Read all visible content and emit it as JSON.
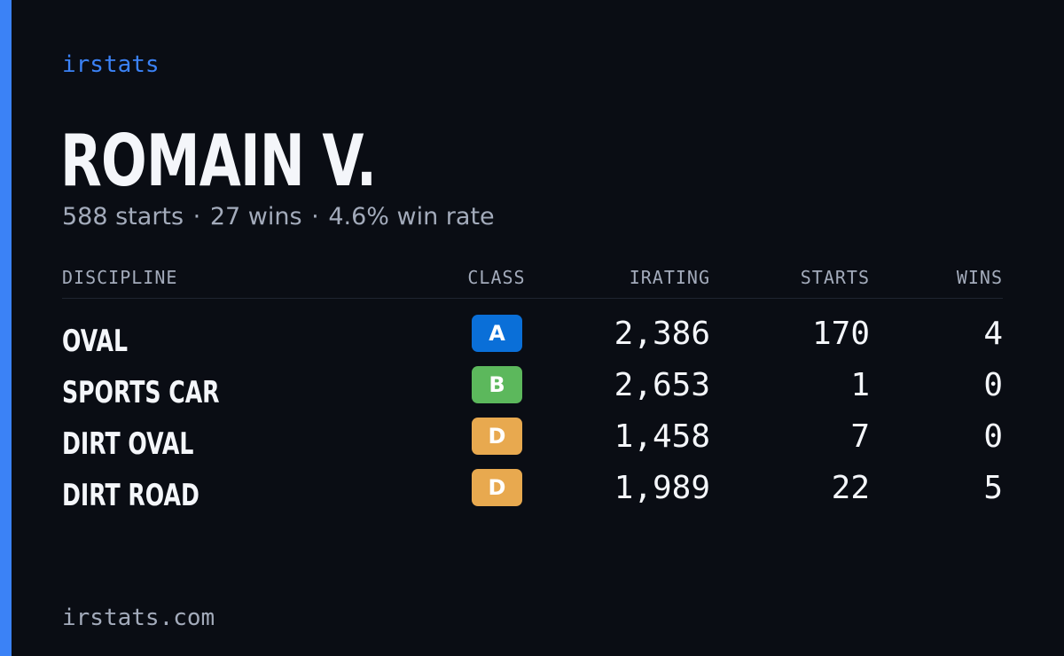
{
  "brand": "irstats",
  "driver": {
    "name": "ROMAIN V.",
    "starts_text": "588 starts",
    "wins_text": "27 wins",
    "win_rate_text": "4.6% win rate",
    "separator": "·"
  },
  "table": {
    "headers": {
      "discipline": "DISCIPLINE",
      "class": "CLASS",
      "irating": "IRATING",
      "starts": "STARTS",
      "wins": "WINS"
    },
    "rows": [
      {
        "discipline": "OVAL",
        "class": "A",
        "class_color": "#0a6fd8",
        "irating": "2,386",
        "starts": "170",
        "wins": "4"
      },
      {
        "discipline": "SPORTS CAR",
        "class": "B",
        "class_color": "#5cb85c",
        "irating": "2,653",
        "starts": "1",
        "wins": "0"
      },
      {
        "discipline": "DIRT OVAL",
        "class": "D",
        "class_color": "#e8a94f",
        "irating": "1,458",
        "starts": "7",
        "wins": "0"
      },
      {
        "discipline": "DIRT ROAD",
        "class": "D",
        "class_color": "#e8a94f",
        "irating": "1,989",
        "starts": "22",
        "wins": "5"
      }
    ]
  },
  "footer": "irstats.com",
  "colors": {
    "accent": "#3b82f6",
    "background": "#0a0d14",
    "text_primary": "#f4f6fa",
    "text_muted": "#a3abbb"
  }
}
